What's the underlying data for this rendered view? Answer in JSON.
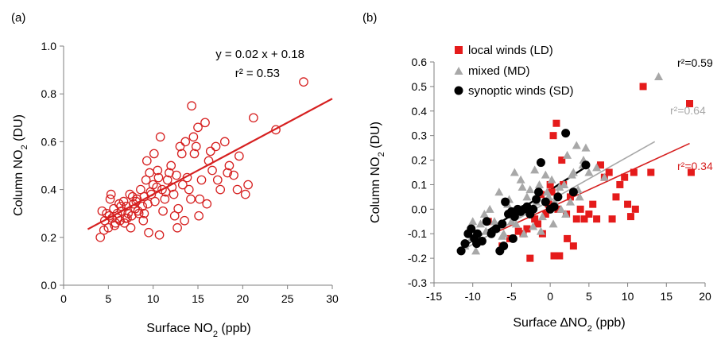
{
  "chart_data": [
    {
      "type": "scatter",
      "panel_label": "(a)",
      "xlabel": "Surface NO",
      "xlabel_sub": "2",
      "xlabel_unit": " (ppb)",
      "ylabel": "Column NO",
      "ylabel_sub": "2",
      "ylabel_unit": " (DU)",
      "xlim": [
        0,
        30
      ],
      "ylim": [
        0,
        1.0
      ],
      "xticks": [
        0,
        5,
        10,
        15,
        20,
        25,
        30
      ],
      "xtick_labels": [
        "0",
        "5",
        "10",
        "15",
        "20",
        "25",
        "30"
      ],
      "yticks": [
        0,
        0.2,
        0.4,
        0.6,
        0.8,
        1.0
      ],
      "ytick_labels": [
        "0.0",
        "0.2",
        "0.4",
        "0.6",
        "0.8",
        "1.0"
      ],
      "grid": false,
      "equation_text": "y = 0.02 x + 0.18",
      "r2_label": "r² = 0.53",
      "fit": {
        "slope": 0.02,
        "intercept": 0.18,
        "x_range": [
          2.7,
          30
        ]
      },
      "color": "#d62020",
      "marker": "open-circle",
      "x": [
        4.1,
        4.3,
        4.6,
        4.8,
        5.0,
        5.2,
        5.4,
        5.6,
        5.8,
        6.0,
        6.2,
        6.3,
        6.5,
        6.7,
        6.9,
        7.0,
        7.2,
        7.4,
        7.6,
        7.8,
        8.0,
        8.2,
        8.4,
        8.6,
        8.8,
        9.0,
        9.2,
        9.4,
        9.6,
        9.8,
        10.0,
        10.2,
        10.5,
        10.8,
        11.0,
        11.3,
        11.6,
        12.0,
        12.3,
        12.6,
        13.0,
        13.3,
        13.6,
        14.0,
        14.3,
        14.6,
        15.0,
        15.4,
        15.8,
        16.2,
        16.6,
        17.0,
        17.5,
        18.0,
        18.5,
        19.0,
        19.6,
        20.3,
        21.2,
        23.7,
        26.8,
        4.5,
        5.1,
        5.7,
        6.4,
        7.1,
        7.7,
        8.3,
        8.9,
        9.5,
        10.1,
        10.7,
        11.4,
        12.1,
        12.8,
        13.5,
        14.2,
        15.1,
        16.0,
        17.2,
        18.3,
        19.4,
        20.6,
        6.0,
        7.5,
        9.0,
        10.4,
        11.8,
        13.2,
        14.8,
        16.4,
        9.3,
        10.6,
        12.4,
        13.8,
        15.2,
        5.3,
        6.8,
        8.1,
        9.7,
        11.1,
        12.7,
        14.5
      ],
      "y": [
        0.2,
        0.31,
        0.27,
        0.3,
        0.24,
        0.36,
        0.28,
        0.32,
        0.26,
        0.3,
        0.34,
        0.27,
        0.31,
        0.35,
        0.28,
        0.33,
        0.3,
        0.38,
        0.29,
        0.34,
        0.32,
        0.36,
        0.3,
        0.4,
        0.33,
        0.37,
        0.44,
        0.34,
        0.47,
        0.38,
        0.42,
        0.35,
        0.48,
        0.62,
        0.4,
        0.36,
        0.44,
        0.5,
        0.38,
        0.46,
        0.58,
        0.42,
        0.6,
        0.4,
        0.75,
        0.55,
        0.66,
        0.44,
        0.68,
        0.52,
        0.48,
        0.58,
        0.4,
        0.6,
        0.5,
        0.46,
        0.54,
        0.38,
        0.7,
        0.65,
        0.85,
        0.23,
        0.29,
        0.25,
        0.33,
        0.28,
        0.37,
        0.31,
        0.27,
        0.22,
        0.55,
        0.21,
        0.39,
        0.41,
        0.32,
        0.27,
        0.36,
        0.29,
        0.34,
        0.44,
        0.47,
        0.4,
        0.42,
        0.28,
        0.24,
        0.3,
        0.41,
        0.47,
        0.55,
        0.58,
        0.56,
        0.52,
        0.45,
        0.29,
        0.45,
        0.36,
        0.38,
        0.26,
        0.35,
        0.39,
        0.31,
        0.24,
        0.62
      ],
      "plot_box": [
        80,
        58,
        418,
        359
      ]
    },
    {
      "type": "scatter",
      "panel_label": "(b)",
      "xlabel": "Surface ∆NO",
      "xlabel_sub": "2",
      "xlabel_unit": " (ppb)",
      "ylabel": "Column NO",
      "ylabel_sub": "2",
      "ylabel_unit": " (DU)",
      "xlim": [
        -15,
        20
      ],
      "ylim": [
        -0.3,
        0.6
      ],
      "xticks": [
        -15,
        -10,
        -5,
        0,
        5,
        10,
        15,
        20
      ],
      "xtick_labels": [
        "-15",
        "-10",
        "-5",
        "0",
        "5",
        "10",
        "15",
        "20"
      ],
      "yticks": [
        -0.3,
        -0.2,
        -0.1,
        0.0,
        0.1,
        0.2,
        0.3,
        0.4,
        0.5,
        0.6
      ],
      "ytick_labels": [
        "-0.3",
        "-0.2",
        "-0.1",
        "0.0",
        "0.1",
        "0.2",
        "0.3",
        "0.4",
        "0.5",
        "0.6"
      ],
      "grid": false,
      "legend_position": "top-left",
      "plot_box": [
        546,
        78,
        887,
        356
      ],
      "series": [
        {
          "name": "local winds (LD)",
          "color": "#e51b1b",
          "marker": "square",
          "r2_label": "r²=0.34",
          "fit": {
            "slope": 0.0145,
            "intercept": 0.007,
            "x_range": [
              -8,
              18
            ]
          },
          "x": [
            -8.0,
            -6.2,
            -5.2,
            -4.1,
            -3.5,
            -3.0,
            -2.6,
            -2.0,
            -1.6,
            -1.0,
            -0.6,
            -0.2,
            0.0,
            0.4,
            0.8,
            1.2,
            1.7,
            2.2,
            2.6,
            3.0,
            3.4,
            3.9,
            4.4,
            5.0,
            5.5,
            6.0,
            6.5,
            7.0,
            7.6,
            8.0,
            8.5,
            9.0,
            9.6,
            10.0,
            10.4,
            10.8,
            11.0,
            12.0,
            13.0,
            18.0,
            18.2,
            0.5,
            1.0,
            2.1,
            -1.2,
            1.5,
            -2.4,
            0.2
          ],
          "y": [
            -0.05,
            -0.15,
            -0.12,
            -0.09,
            -0.1,
            -0.08,
            -0.2,
            -0.04,
            -0.06,
            -0.1,
            -0.02,
            0.02,
            0.1,
            0.3,
            0.35,
            -0.19,
            0.1,
            -0.12,
            0.05,
            -0.15,
            -0.04,
            0.0,
            -0.04,
            -0.02,
            0.02,
            -0.04,
            0.18,
            0.13,
            0.15,
            -0.04,
            0.05,
            0.1,
            0.13,
            0.02,
            -0.03,
            0.15,
            0.0,
            0.5,
            0.15,
            0.43,
            0.15,
            -0.19,
            0.0,
            -0.02,
            0.06,
            0.2,
            0.0,
            0.07
          ],
          "plot_box": [
            546,
            78,
            887,
            356
          ]
        },
        {
          "name": "mixed (MD)",
          "color": "#a8a8a8",
          "marker": "triangle",
          "r2_label": "r²=0.64",
          "fit": {
            "slope": 0.0178,
            "intercept": 0.035,
            "x_range": [
              -11,
              13.5
            ]
          },
          "x": [
            -11.0,
            -10.2,
            -9.6,
            -9.0,
            -8.3,
            -7.8,
            -7.2,
            -6.6,
            -6.0,
            -5.5,
            -5.0,
            -4.6,
            -4.2,
            -3.8,
            -3.4,
            -3.0,
            -2.6,
            -2.2,
            -1.8,
            -1.4,
            -1.0,
            -0.6,
            -0.2,
            0.2,
            0.6,
            1.0,
            1.4,
            1.8,
            2.2,
            2.6,
            3.0,
            3.4,
            3.8,
            4.2,
            4.6,
            5.0,
            6.0,
            7.0,
            -8.5,
            -7.0,
            -6.2,
            -5.3,
            -4.4,
            -3.6,
            -2.8,
            -2.0,
            -1.2,
            -0.4,
            0.4,
            1.2,
            2.0,
            2.8,
            3.6,
            14.0,
            4.3,
            -10.0
          ],
          "y": [
            -0.15,
            -0.12,
            -0.17,
            -0.06,
            -0.09,
            0.0,
            -0.05,
            0.07,
            -0.1,
            0.02,
            -0.05,
            0.15,
            -0.02,
            0.12,
            -0.1,
            0.05,
            0.08,
            -0.07,
            0.03,
            0.1,
            -0.03,
            0.14,
            0.05,
            0.12,
            0.03,
            0.06,
            0.0,
            0.1,
            0.22,
            0.03,
            0.15,
            0.26,
            0.05,
            0.18,
            0.25,
            0.15,
            0.17,
            0.13,
            -0.02,
            -0.08,
            -0.11,
            0.04,
            -0.06,
            0.09,
            0.01,
            0.16,
            -0.09,
            0.07,
            -0.06,
            0.09,
            -0.02,
            0.14,
            0.08,
            0.54,
            0.2,
            -0.05
          ],
          "plot_box": [
            546,
            78,
            887,
            356
          ]
        },
        {
          "name": "synoptic winds (SD)",
          "color": "#000000",
          "marker": "circle",
          "r2_label": "r²=0.59",
          "fit": {
            "slope": 0.0205,
            "intercept": 0.078,
            "x_range": [
              -12,
              4.5
            ]
          },
          "x": [
            -11.5,
            -11.0,
            -10.6,
            -10.2,
            -9.8,
            -9.4,
            -8.8,
            -8.2,
            -7.6,
            -7.0,
            -6.5,
            -6.2,
            -5.8,
            -5.4,
            -5.0,
            -4.6,
            -4.2,
            -3.8,
            -3.4,
            -3.0,
            -2.6,
            -2.2,
            -1.8,
            -1.2,
            -0.6,
            0.0,
            0.5,
            1.0,
            2.0,
            3.0,
            4.6,
            -1.5,
            -6.0,
            -4.8,
            -9.5
          ],
          "y": [
            -0.17,
            -0.14,
            -0.1,
            -0.08,
            -0.12,
            -0.1,
            -0.13,
            -0.05,
            -0.1,
            -0.08,
            -0.17,
            -0.06,
            0.03,
            -0.02,
            -0.01,
            -0.03,
            0.0,
            -0.01,
            0.0,
            0.01,
            -0.02,
            0.0,
            0.04,
            0.19,
            0.03,
            0.0,
            0.01,
            0.05,
            0.31,
            0.07,
            0.18,
            0.07,
            -0.15,
            -0.12,
            -0.14
          ],
          "plot_box": [
            546,
            78,
            887,
            356
          ]
        }
      ]
    }
  ]
}
